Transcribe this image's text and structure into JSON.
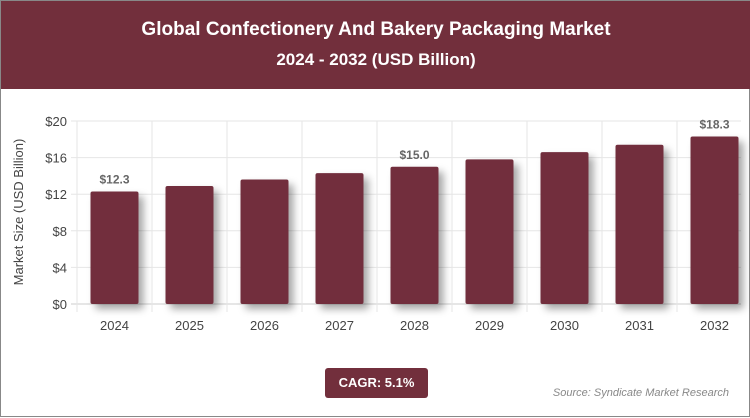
{
  "header": {
    "title": "Global Confectionery And Bakery Packaging Market",
    "subtitle": "2024 - 2032 (USD Billion)"
  },
  "chart_data": {
    "type": "bar",
    "title": "Global Confectionery And Bakery Packaging Market",
    "subtitle": "2024 - 2032 (USD Billion)",
    "ylabel": "Market Size (USD Billion)",
    "xlabel": "",
    "ylim": [
      0,
      20
    ],
    "yticks": [
      "$0",
      "$4",
      "$8",
      "$12",
      "$16",
      "$20"
    ],
    "categories": [
      "2024",
      "2025",
      "2026",
      "2027",
      "2028",
      "2029",
      "2030",
      "2031",
      "2032"
    ],
    "values": [
      12.3,
      12.9,
      13.6,
      14.3,
      15.0,
      15.8,
      16.6,
      17.4,
      18.3
    ],
    "data_labels": {
      "0": "$12.3",
      "4": "$15.0",
      "8": "$18.3"
    },
    "bar_color": "#722f3c",
    "grid": true
  },
  "footer": {
    "cagr": "CAGR: 5.1%",
    "source": "Source: Syndicate Market Research"
  }
}
